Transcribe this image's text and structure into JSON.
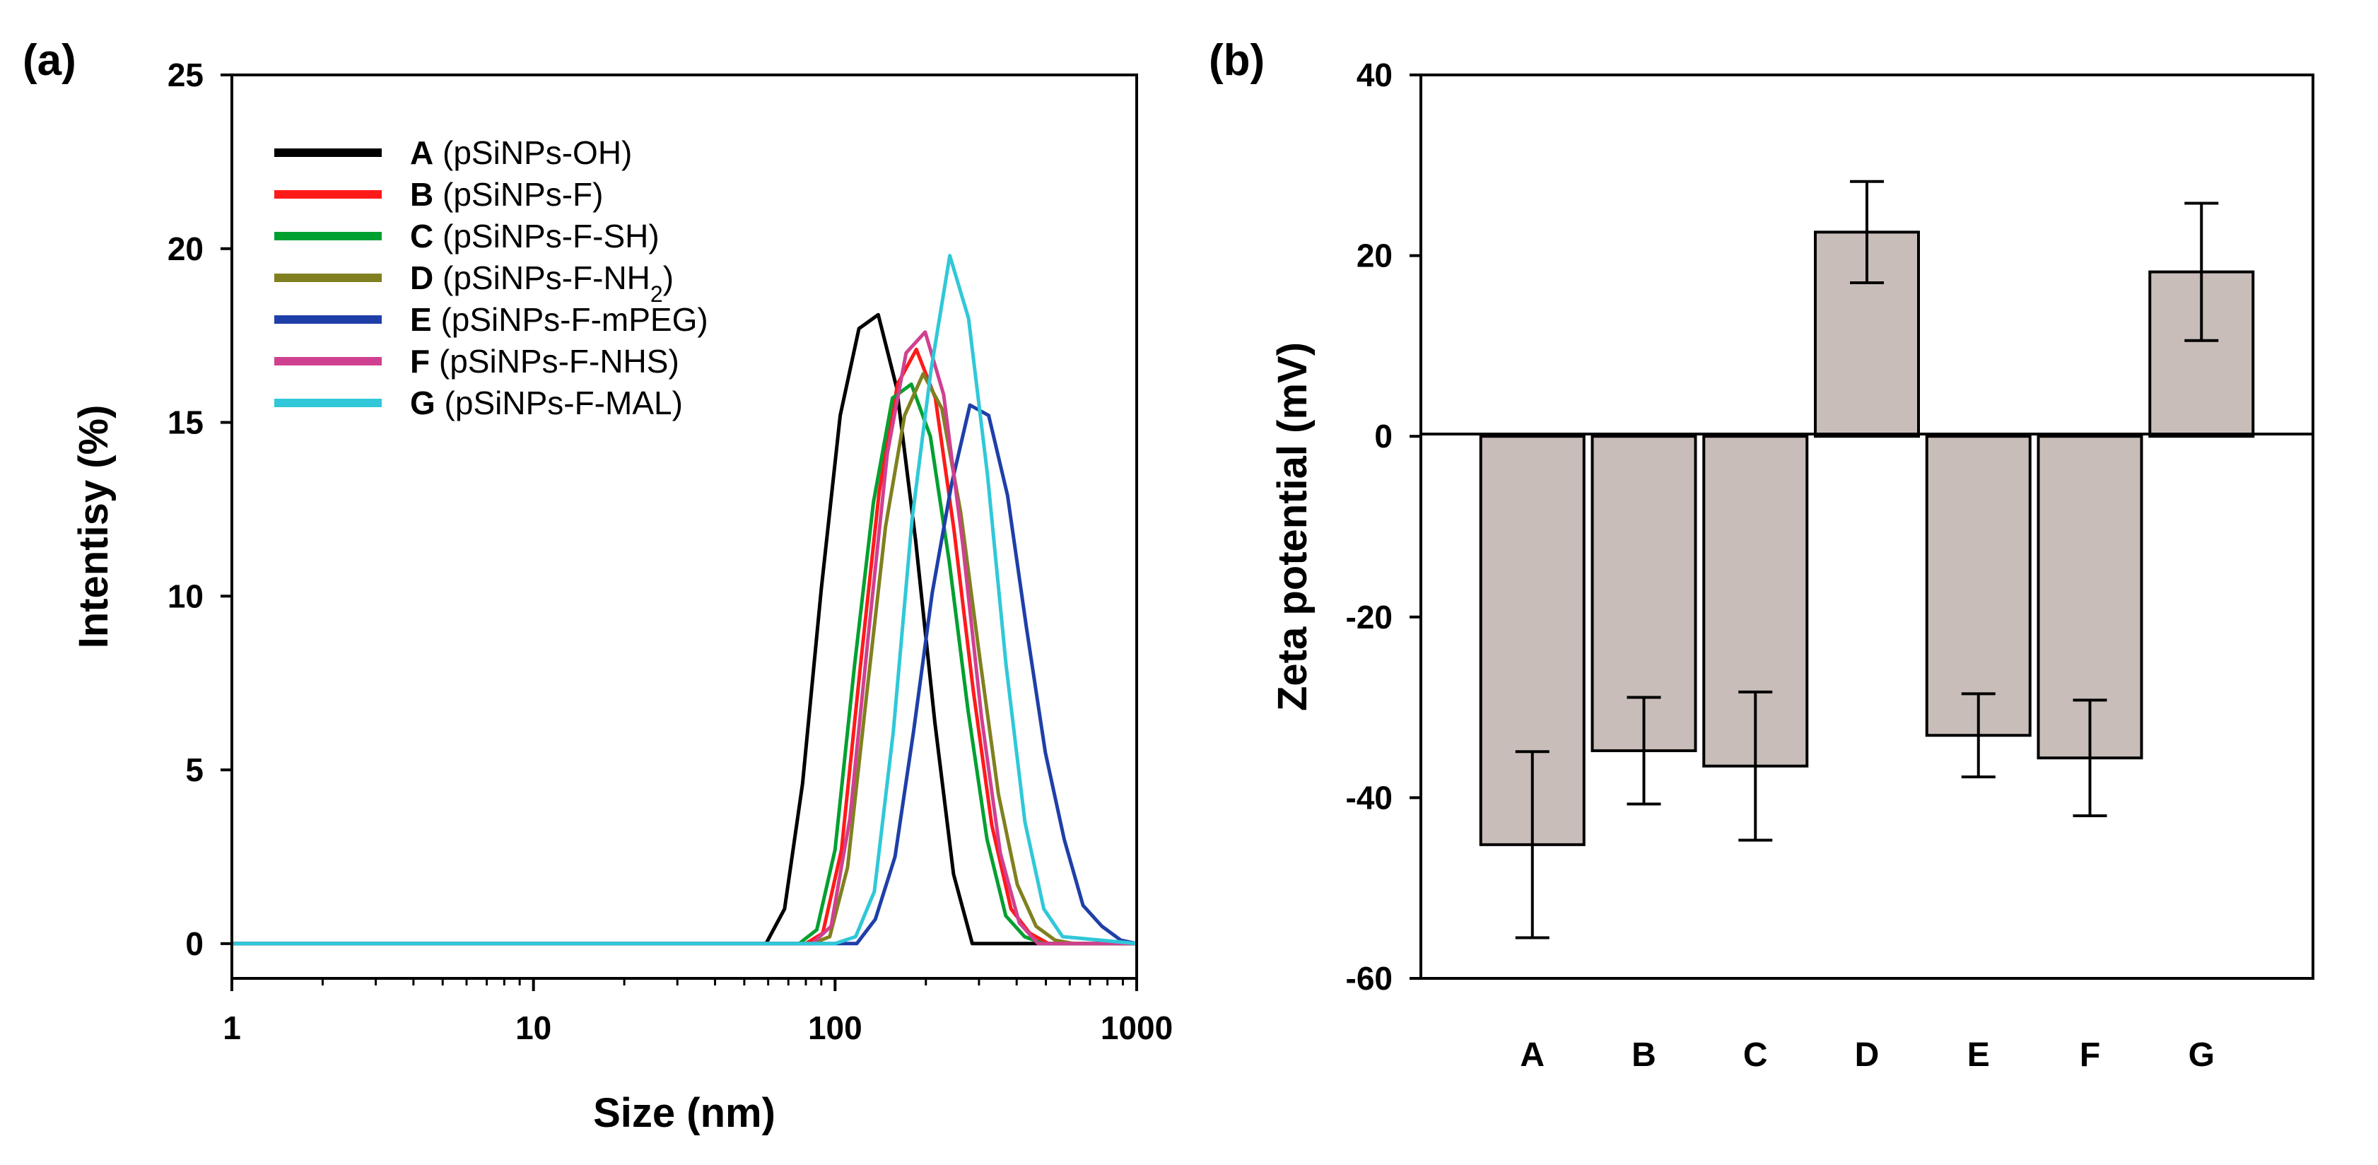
{
  "chart_data": [
    {
      "panel": "(a)",
      "type": "line",
      "xlabel": "Size (nm)",
      "ylabel": "Intentisy (%)",
      "xscale": "log",
      "xlim": [
        1,
        1000
      ],
      "ylim": [
        -1,
        25
      ],
      "x_ticks": [
        {
          "value": 1,
          "label": "1"
        },
        {
          "value": 10,
          "label": "10"
        },
        {
          "value": 100,
          "label": "100"
        },
        {
          "value": 1000,
          "label": "1000"
        }
      ],
      "y_ticks": [
        {
          "value": 0,
          "label": "0"
        },
        {
          "value": 5,
          "label": "5"
        },
        {
          "value": 10,
          "label": "10"
        },
        {
          "value": 15,
          "label": "15"
        },
        {
          "value": 20,
          "label": "20"
        },
        {
          "value": 25,
          "label": "25"
        }
      ],
      "legend_position": "top-left",
      "series": [
        {
          "letter": "A",
          "name": "(pSiNPs-OH)",
          "sub": "",
          "color": "#000000",
          "x": [
            1,
            59,
            68,
            78,
            90,
            104,
            120,
            139,
            160,
            185,
            214,
            247,
            285,
            330,
            1000
          ],
          "y": [
            0,
            0,
            1.0,
            4.6,
            10.2,
            15.2,
            17.7,
            18.1,
            16.0,
            11.6,
            6.4,
            2.0,
            0,
            0,
            0
          ]
        },
        {
          "letter": "B",
          "name": "(pSiNPs-F)",
          "sub": "",
          "color": "#ff1a1a",
          "x": [
            1,
            80,
            91,
            105,
            121,
            140,
            161,
            186,
            215,
            248,
            287,
            331,
            383,
            442,
            510,
            1000
          ],
          "y": [
            0,
            0,
            0.3,
            2.7,
            7.9,
            13.0,
            16.1,
            17.1,
            15.7,
            11.9,
            7.3,
            3.4,
            1.0,
            0.3,
            0,
            0
          ]
        },
        {
          "letter": "C",
          "name": "(pSiNPs-F-SH)",
          "sub": "",
          "color": "#00a030",
          "x": [
            1,
            76,
            87,
            100,
            116,
            134,
            155,
            179,
            207,
            239,
            276,
            319,
            368,
            425,
            490,
            1000
          ],
          "y": [
            0,
            0,
            0.4,
            2.7,
            8.0,
            12.7,
            15.7,
            16.1,
            14.6,
            11.0,
            6.7,
            3.0,
            0.8,
            0.2,
            0,
            0
          ]
        },
        {
          "letter": "D",
          "name": "(pSiNPs-F-NH",
          "sub": "2",
          "name_end": ")",
          "color": "#808020",
          "x": [
            1,
            84,
            96,
            110,
            127,
            147,
            170,
            196,
            226,
            261,
            301,
            348,
            402,
            464,
            536,
            620,
            1000
          ],
          "y": [
            0,
            0,
            0.2,
            2.2,
            7.1,
            12.0,
            15.2,
            16.4,
            15.4,
            12.4,
            8.3,
            4.3,
            1.7,
            0.5,
            0.1,
            0,
            0
          ]
        },
        {
          "letter": "E",
          "name": "(pSiNPs-F-mPEG)",
          "sub": "",
          "color": "#1f3fa8",
          "x": [
            1,
            100,
            118,
            136,
            158,
            182,
            210,
            243,
            280,
            323,
            373,
            431,
            498,
            575,
            664,
            767,
            885,
            1000
          ],
          "y": [
            0,
            0,
            0,
            0.7,
            2.5,
            6.1,
            10.1,
            13.2,
            15.5,
            15.2,
            12.9,
            9.1,
            5.5,
            3.0,
            1.1,
            0.5,
            0.1,
            0
          ]
        },
        {
          "letter": "F",
          "name": "(pSiNPs-F-NHS)",
          "sub": "",
          "color": "#d04090",
          "x": [
            1,
            84,
            97,
            112,
            129,
            149,
            172,
            199,
            229,
            265,
            306,
            353,
            408,
            471,
            1000
          ],
          "y": [
            0,
            0,
            0.5,
            3.6,
            8.9,
            14.1,
            17.0,
            17.6,
            15.8,
            11.5,
            6.5,
            2.6,
            0.6,
            0,
            0
          ]
        },
        {
          "letter": "G",
          "name": "(pSiNPs-F-MAL)",
          "sub": "",
          "color": "#30c8d8",
          "x": [
            1,
            100,
            117,
            135,
            156,
            180,
            208,
            240,
            277,
            320,
            369,
            426,
            492,
            568,
            1000
          ],
          "y": [
            0,
            0,
            0.2,
            1.5,
            6.1,
            12.2,
            16.5,
            19.8,
            18.0,
            13.5,
            8.0,
            3.5,
            1.0,
            0.2,
            0
          ]
        }
      ]
    },
    {
      "panel": "(b)",
      "type": "bar",
      "xlabel": "",
      "ylabel": "Zeta potential (mV)",
      "ylim": [
        -60,
        40
      ],
      "y_ticks": [
        {
          "value": -60,
          "label": "-60"
        },
        {
          "value": -40,
          "label": "-40"
        },
        {
          "value": -20,
          "label": "-20"
        },
        {
          "value": 0,
          "label": "0"
        },
        {
          "value": 20,
          "label": "20"
        },
        {
          "value": 40,
          "label": "40"
        }
      ],
      "categories": [
        "A",
        "B",
        "C",
        "D",
        "E",
        "F",
        "G"
      ],
      "values": [
        -45.2,
        -34.8,
        -36.5,
        22.6,
        -33.1,
        -35.6,
        18.2
      ],
      "errors": [
        10.3,
        5.9,
        8.2,
        5.6,
        4.6,
        6.4,
        7.6
      ],
      "bar_color": "#c8bdb8"
    }
  ]
}
